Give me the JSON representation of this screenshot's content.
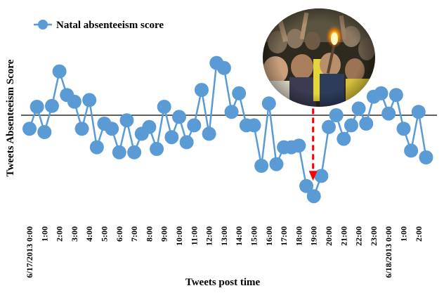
{
  "chart_data": {
    "type": "line",
    "title": "",
    "xlabel": "Tweets post time",
    "ylabel": "Tweets Absenteeism Score",
    "ylim": [
      -7,
      4
    ],
    "baseline": 0,
    "grid": false,
    "legend": {
      "position": "top-left",
      "entries": [
        "Natal absenteeism score"
      ]
    },
    "x_range": [
      0,
      52
    ],
    "x_ticks": [
      {
        "x": 0,
        "label": "6/17/2013 0:00"
      },
      {
        "x": 2,
        "label": "1:00"
      },
      {
        "x": 4,
        "label": "2:00"
      },
      {
        "x": 6,
        "label": "3:00"
      },
      {
        "x": 8,
        "label": "4:00"
      },
      {
        "x": 10,
        "label": "5:00"
      },
      {
        "x": 12,
        "label": "6:00"
      },
      {
        "x": 14,
        "label": "7:00"
      },
      {
        "x": 16,
        "label": "8:00"
      },
      {
        "x": 18,
        "label": "9:00"
      },
      {
        "x": 20,
        "label": "10:00"
      },
      {
        "x": 22,
        "label": "11:00"
      },
      {
        "x": 24,
        "label": "12:00"
      },
      {
        "x": 26,
        "label": "13:00"
      },
      {
        "x": 28,
        "label": "14:00"
      },
      {
        "x": 30,
        "label": "15:00"
      },
      {
        "x": 32,
        "label": "16:00"
      },
      {
        "x": 34,
        "label": "17:00"
      },
      {
        "x": 36,
        "label": "18:00"
      },
      {
        "x": 38,
        "label": "19:00"
      },
      {
        "x": 40,
        "label": "20:00"
      },
      {
        "x": 42,
        "label": "21:00"
      },
      {
        "x": 44,
        "label": "22:00"
      },
      {
        "x": 46,
        "label": "23:00"
      },
      {
        "x": 48,
        "label": "6/18/2013 0:00"
      },
      {
        "x": 50,
        "label": "1:00"
      },
      {
        "x": 52,
        "label": "2:00"
      }
    ],
    "series": [
      {
        "name": "Natal absenteeism score",
        "color": "#5b9bd5",
        "points": [
          [
            0,
            -0.8
          ],
          [
            1,
            0.5
          ],
          [
            2,
            -1.0
          ],
          [
            3,
            0.55
          ],
          [
            4,
            2.6
          ],
          [
            5,
            1.2
          ],
          [
            6,
            0.8
          ],
          [
            7,
            -0.8
          ],
          [
            8,
            0.9
          ],
          [
            9,
            -1.9
          ],
          [
            10,
            -0.5
          ],
          [
            11,
            -0.8
          ],
          [
            12,
            -2.2
          ],
          [
            13,
            -0.3
          ],
          [
            14,
            -2.2
          ],
          [
            15,
            -1.1
          ],
          [
            16,
            -0.7
          ],
          [
            17,
            -2.0
          ],
          [
            18,
            0.5
          ],
          [
            19,
            -1.3
          ],
          [
            20,
            -0.1
          ],
          [
            21,
            -1.6
          ],
          [
            22,
            -0.6
          ],
          [
            23,
            1.5
          ],
          [
            24,
            -1.1
          ],
          [
            25,
            3.1
          ],
          [
            26,
            2.8
          ],
          [
            27,
            0.2
          ],
          [
            28,
            1.3
          ],
          [
            29,
            -0.6
          ],
          [
            30,
            -0.6
          ],
          [
            31,
            -3.0
          ],
          [
            32,
            0.7
          ],
          [
            33,
            -2.9
          ],
          [
            34,
            -1.9
          ],
          [
            35,
            -1.9
          ],
          [
            36,
            -1.8
          ],
          [
            37,
            -4.2
          ],
          [
            38,
            -4.8
          ],
          [
            39,
            -3.6
          ],
          [
            40,
            -0.7
          ],
          [
            41,
            0.0
          ],
          [
            42,
            -1.4
          ],
          [
            43,
            -0.6
          ],
          [
            44,
            0.4
          ],
          [
            45,
            -0.5
          ],
          [
            46,
            1.1
          ],
          [
            47,
            1.3
          ],
          [
            48,
            0.1
          ],
          [
            49,
            1.2
          ],
          [
            50,
            -0.8
          ],
          [
            51,
            -2.1
          ],
          [
            52,
            0.2
          ],
          [
            53,
            -2.5
          ]
        ]
      }
    ],
    "annotations": [
      {
        "type": "dashed-arrow",
        "color": "#ff0000",
        "x": 37.9,
        "y_from": 0.4,
        "y_to": -3.8
      },
      {
        "type": "photo",
        "subject": "crowd of protesters holding a torch"
      }
    ]
  }
}
